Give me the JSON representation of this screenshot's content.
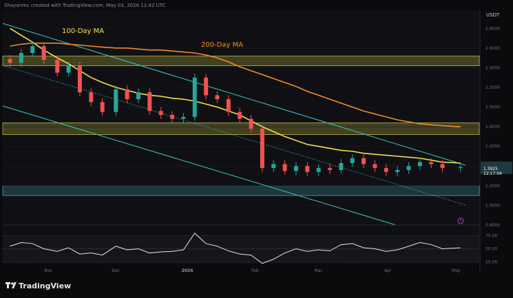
{
  "header": {
    "attribution": "Shayanmc created with TradingView.com, May 03, 2026 11:42 UTC"
  },
  "brand": {
    "name": "TradingView"
  },
  "price_axis": {
    "currency": "USDT",
    "ticks": [
      "2.8000",
      "2.6000",
      "2.4000",
      "2.2000",
      "2.0000",
      "1.8000",
      "1.6000",
      "1.4000",
      "1.2000",
      "1.0000",
      "0.8000"
    ],
    "current_price": "1.3925",
    "countdown": "12:17:04"
  },
  "rsi_axis": {
    "ticks": [
      "75.00",
      "50.00",
      "25.00"
    ]
  },
  "time_axis": {
    "ticks": [
      "Nov",
      "Dec",
      "2026",
      "Feb",
      "Mar",
      "Apr",
      "May"
    ]
  },
  "labels": {
    "ma100": "100-Day MA",
    "ma200": "200-Day MA"
  },
  "colors": {
    "background": "#0b0b0d",
    "bull": "#26a69a",
    "bear": "#ef5350",
    "ma100": "#f2e14b",
    "ma200": "#f08c28",
    "channel": "#3ec9c0",
    "zone_yellow": "#6b6a2a",
    "zone_teal": "#2a5560",
    "rsi": "#e6e6e6"
  },
  "chart_data": [
    {
      "type": "candlestick",
      "x": [
        "2025-10-15",
        "2025-10-20",
        "2025-10-25",
        "2025-10-30",
        "2025-11-05",
        "2025-11-10",
        "2025-11-15",
        "2025-11-20",
        "2025-11-25",
        "2025-12-01",
        "2025-12-06",
        "2025-12-11",
        "2025-12-16",
        "2025-12-21",
        "2025-12-26",
        "2025-12-31",
        "2026-01-05",
        "2026-01-10",
        "2026-01-15",
        "2026-01-20",
        "2026-01-25",
        "2026-01-30",
        "2026-02-04",
        "2026-02-09",
        "2026-02-14",
        "2026-02-19",
        "2026-02-24",
        "2026-03-01",
        "2026-03-06",
        "2026-03-11",
        "2026-03-16",
        "2026-03-21",
        "2026-03-26",
        "2026-03-31",
        "2026-04-05",
        "2026-04-10",
        "2026-04-15",
        "2026-04-20",
        "2026-04-25",
        "2026-05-03"
      ],
      "close": [
        2.45,
        2.55,
        2.62,
        2.48,
        2.35,
        2.42,
        2.15,
        2.05,
        1.95,
        2.18,
        2.08,
        2.15,
        1.96,
        1.92,
        1.88,
        1.9,
        2.3,
        2.12,
        2.08,
        1.95,
        1.88,
        1.78,
        1.38,
        1.42,
        1.35,
        1.4,
        1.34,
        1.38,
        1.36,
        1.43,
        1.48,
        1.42,
        1.38,
        1.34,
        1.36,
        1.4,
        1.44,
        1.42,
        1.38,
        1.39
      ],
      "price_range": [
        0.8,
        2.9
      ],
      "series": [
        {
          "name": "100-Day MA",
          "values": [
            2.8,
            2.73,
            2.66,
            2.58,
            2.5,
            2.44,
            2.37,
            2.3,
            2.25,
            2.2,
            2.17,
            2.14,
            2.12,
            2.11,
            2.09,
            2.08,
            2.06,
            2.03,
            2.0,
            1.96,
            1.92,
            1.86,
            1.8,
            1.75,
            1.7,
            1.66,
            1.62,
            1.6,
            1.58,
            1.56,
            1.55,
            1.53,
            1.52,
            1.51,
            1.5,
            1.49,
            1.48,
            1.46,
            1.44,
            1.43
          ]
        },
        {
          "name": "200-Day MA",
          "values": [
            2.62,
            2.64,
            2.65,
            2.65,
            2.65,
            2.64,
            2.63,
            2.62,
            2.61,
            2.6,
            2.6,
            2.59,
            2.58,
            2.58,
            2.57,
            2.56,
            2.55,
            2.53,
            2.5,
            2.46,
            2.41,
            2.37,
            2.33,
            2.29,
            2.25,
            2.21,
            2.16,
            2.12,
            2.08,
            2.04,
            2.0,
            1.96,
            1.93,
            1.9,
            1.87,
            1.85,
            1.83,
            1.82,
            1.81,
            1.8
          ]
        }
      ],
      "zones": [
        {
          "from": 2.42,
          "to": 2.52
        },
        {
          "from": 1.72,
          "to": 1.84
        },
        {
          "from": 1.1,
          "to": 1.2
        }
      ]
    },
    {
      "type": "line",
      "series_label": "RSI",
      "values": [
        55,
        62,
        60,
        50,
        45,
        52,
        40,
        42,
        38,
        55,
        48,
        50,
        42,
        44,
        45,
        48,
        80,
        60,
        55,
        46,
        40,
        38,
        22,
        30,
        42,
        50,
        45,
        48,
        46,
        58,
        60,
        52,
        50,
        45,
        48,
        55,
        62,
        58,
        50,
        52
      ],
      "ylim": [
        15,
        85
      ],
      "levels": [
        75,
        50,
        25
      ]
    }
  ]
}
